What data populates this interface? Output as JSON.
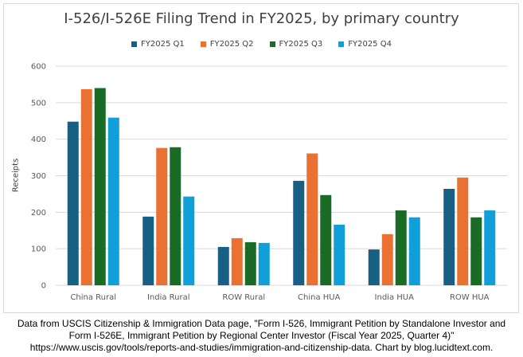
{
  "chart_data": {
    "type": "bar",
    "title": "I-526/I-526E Filing Trend in FY2025, by primary country",
    "xlabel": "",
    "ylabel": "Receipts",
    "ylim": [
      0,
      600
    ],
    "yticks": [
      0,
      100,
      200,
      300,
      400,
      500,
      600
    ],
    "grid": true,
    "legend_position": "top",
    "categories": [
      "China Rural",
      "India Rural",
      "ROW Rural",
      "China HUA",
      "India HUA",
      "ROW HUA"
    ],
    "series": [
      {
        "name": "FY2025 Q1",
        "color": "#185f84",
        "values": [
          448,
          188,
          105,
          286,
          98,
          264
        ]
      },
      {
        "name": "FY2025 Q2",
        "color": "#e97132",
        "values": [
          537,
          376,
          129,
          361,
          140,
          295
        ]
      },
      {
        "name": "FY2025 Q3",
        "color": "#1a6b26",
        "values": [
          540,
          378,
          118,
          247,
          205,
          186
        ]
      },
      {
        "name": "FY2025 Q4",
        "color": "#109fd8",
        "values": [
          459,
          243,
          116,
          166,
          186,
          205
        ]
      }
    ]
  },
  "footer": {
    "line1": "Data from USCIS Citizenship & Immigration Data page, \"Form I-526, Immigrant Petition by Standalone Investor and",
    "line2": "Form I-526E, Immigrant Petition by Regional Center Investor (Fiscal Year 2025, Quarter 4)\"",
    "line3": "https://www.uscis.gov/tools/reports-and-studies/immigration-and-citizenship-data. Chart by blog.lucidtext.com."
  }
}
